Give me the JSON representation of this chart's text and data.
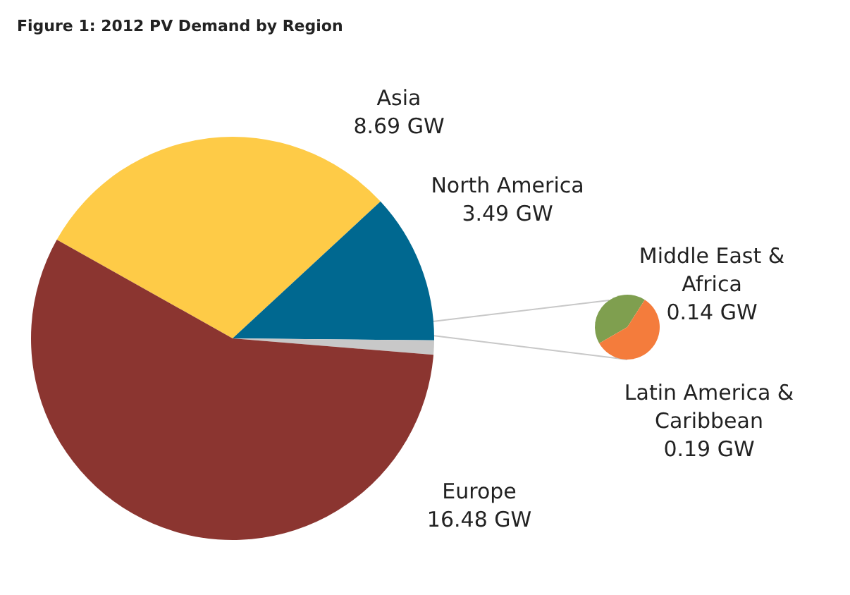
{
  "chart_data": [
    {
      "type": "pie",
      "title": "Figure 1: 2012 PV Demand by Region",
      "categories": [
        "Asia",
        "North America",
        null,
        "Europe"
      ],
      "values": [
        8.69,
        3.49,
        0.33,
        16.48
      ],
      "value_labels": [
        "8.69 GW",
        "3.49 GW",
        null,
        "16.48 GW"
      ],
      "colors": [
        "#fecb47",
        "#006890",
        "#c8c8c8",
        "#8b3530"
      ],
      "legend": false
    },
    {
      "type": "pie",
      "categories": [
        "Middle East & Africa",
        "Latin America & Caribbean"
      ],
      "values": [
        0.14,
        0.19
      ],
      "value_labels": [
        "0.14 GW",
        "0.19 GW"
      ],
      "colors": [
        "#7f9f4f",
        "#f47c3c"
      ],
      "legend": false
    }
  ]
}
